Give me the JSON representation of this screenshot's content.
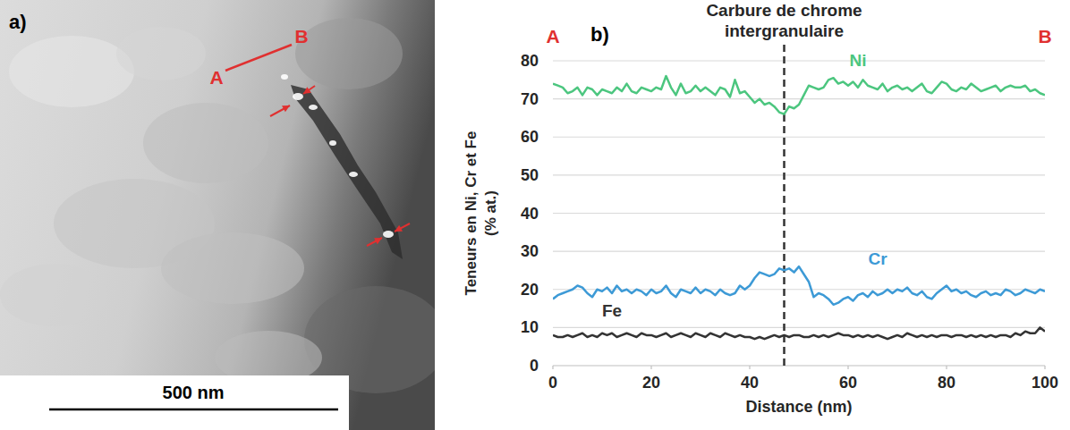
{
  "image": {
    "panel_label": "a)",
    "points": [
      "A",
      "B"
    ],
    "scale_bar": "500 nm"
  },
  "chart_data": {
    "type": "line",
    "panel_label": "b)",
    "x_label": "Distance (nm)",
    "y_label": "Teneurs en Ni, Cr et Fe (% at.)",
    "annotations": [
      {
        "text": "Carbure de chrome intergranulaire",
        "x": 47,
        "line_style": "dashed"
      },
      {
        "text": "A",
        "x": 0,
        "color": "#e03030"
      },
      {
        "text": "B",
        "x": 100,
        "color": "#e03030"
      }
    ],
    "x": [
      0,
      1,
      2,
      3,
      4,
      5,
      6,
      7,
      8,
      9,
      10,
      11,
      12,
      13,
      14,
      15,
      16,
      17,
      18,
      19,
      20,
      21,
      22,
      23,
      24,
      25,
      26,
      27,
      28,
      29,
      30,
      31,
      32,
      33,
      34,
      35,
      36,
      37,
      38,
      39,
      40,
      41,
      42,
      43,
      44,
      45,
      46,
      47,
      48,
      49,
      50,
      51,
      52,
      53,
      54,
      55,
      56,
      57,
      58,
      59,
      60,
      61,
      62,
      63,
      64,
      65,
      66,
      67,
      68,
      69,
      70,
      71,
      72,
      73,
      74,
      75,
      76,
      77,
      78,
      79,
      80,
      81,
      82,
      83,
      84,
      85,
      86,
      87,
      88,
      89,
      90,
      91,
      92,
      93,
      94,
      95,
      96,
      97,
      98,
      99,
      100
    ],
    "series": [
      {
        "name": "Ni",
        "color": "#4cc67f",
        "values": [
          74,
          73.5,
          73,
          71.5,
          72,
          73,
          71,
          73,
          72.5,
          71,
          72.5,
          72,
          71.5,
          73,
          72,
          74,
          72,
          71.5,
          73,
          72.5,
          72,
          73,
          72.5,
          76,
          73,
          71,
          74,
          71.5,
          72,
          73.5,
          72,
          73,
          72,
          71,
          73,
          72.5,
          70.5,
          75,
          71.5,
          72,
          70.5,
          69,
          70,
          68.5,
          69,
          68,
          66.5,
          66,
          68,
          67.5,
          68.5,
          71,
          73.5,
          73,
          72.5,
          73,
          75,
          75.5,
          74,
          74.5,
          73.5,
          74.5,
          73,
          75,
          73.5,
          73,
          72.5,
          74,
          72,
          73,
          73.5,
          72.5,
          73,
          72,
          73,
          74,
          72,
          71.5,
          73,
          74.5,
          74,
          72.5,
          72,
          73,
          72.5,
          74,
          73,
          72,
          72.5,
          73,
          73.5,
          72,
          73,
          73.5,
          73,
          73,
          73.5,
          72,
          72.5,
          71.5,
          71
        ]
      },
      {
        "name": "Cr",
        "color": "#3d9ad6",
        "values": [
          17.5,
          18.5,
          19,
          19.5,
          20,
          21,
          20.5,
          19,
          18,
          20,
          19.5,
          20.5,
          19,
          21,
          19.5,
          20,
          19,
          20,
          19.5,
          18.5,
          20,
          19,
          19.5,
          21,
          19,
          18,
          20,
          19.5,
          19,
          20.5,
          19,
          20,
          19.5,
          18.5,
          20,
          19,
          18.5,
          19,
          21,
          20,
          21,
          23,
          24.5,
          24,
          23.5,
          24,
          25.5,
          25,
          25.5,
          24.5,
          26,
          24,
          22,
          18,
          19,
          18.5,
          17.5,
          16,
          16.5,
          17.5,
          18,
          17,
          18.5,
          19,
          18,
          19.5,
          18.5,
          19,
          20,
          19,
          20,
          19.5,
          20.5,
          19,
          18.5,
          19.5,
          18,
          17.5,
          19,
          20,
          21,
          19.5,
          20,
          19,
          19.5,
          18.5,
          18,
          19,
          19.5,
          18.5,
          19,
          18.5,
          20,
          19.5,
          18.5,
          19,
          20,
          19.5,
          19,
          20,
          19.5
        ]
      },
      {
        "name": "Fe",
        "color": "#333333",
        "values": [
          8,
          7.5,
          7.5,
          8,
          7.5,
          8,
          8.5,
          7.5,
          8,
          7.5,
          8.5,
          8,
          8.5,
          7.5,
          8,
          8.5,
          8,
          7.5,
          8.5,
          8,
          8,
          7.5,
          8,
          8.5,
          7.5,
          8,
          8.5,
          8,
          7.5,
          8.5,
          8,
          7.5,
          8.5,
          8,
          7.5,
          8.5,
          8,
          7.5,
          8,
          7.5,
          7.5,
          7,
          7.5,
          7,
          7.5,
          8,
          7.5,
          8,
          7.5,
          8,
          8,
          7.5,
          7.5,
          8,
          7.5,
          8,
          7.5,
          8,
          8.5,
          8,
          8,
          7.5,
          8,
          7.5,
          8,
          7.5,
          8,
          7.5,
          7,
          7.5,
          8,
          7.5,
          8.5,
          8,
          7.5,
          8,
          7.5,
          8,
          7.5,
          8,
          8,
          7.5,
          8,
          8,
          7.5,
          8,
          7.5,
          8,
          7.5,
          8,
          7.5,
          8,
          8,
          7.5,
          8.5,
          8,
          9,
          8.5,
          8.5,
          10,
          9
        ]
      }
    ],
    "xlim": [
      0,
      100
    ],
    "xticks": [
      0,
      20,
      40,
      60,
      80,
      100
    ],
    "ylim": [
      0,
      80
    ],
    "yticks": [
      0,
      10,
      20,
      30,
      40,
      50,
      60,
      70,
      80
    ],
    "grid": true
  }
}
